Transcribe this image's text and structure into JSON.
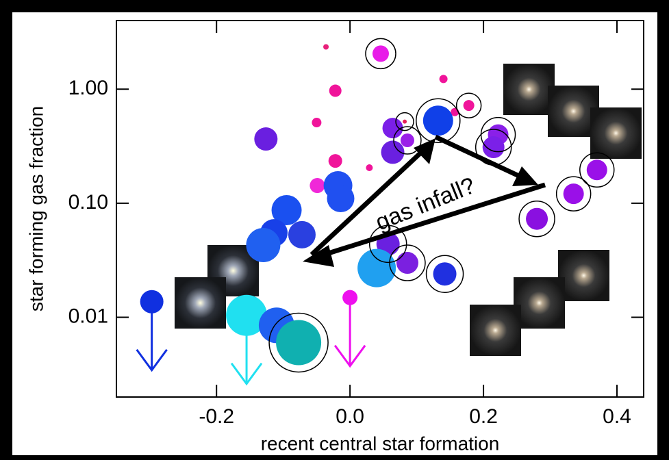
{
  "chart_data": {
    "type": "scatter",
    "xlabel": "recent central star formation",
    "ylabel": "star forming gas fraction",
    "annotation": "gas infall?",
    "log_y": true,
    "xlim": [
      -0.35,
      0.44
    ],
    "ylim": [
      0.002,
      4
    ],
    "xticks": [
      -0.2,
      {
        "value": 0,
        "label": "0.0"
      },
      0.2,
      0.4
    ],
    "yticks": [
      {
        "value": 1,
        "label": "1.00"
      },
      {
        "value": 0.1,
        "label": "0.10"
      },
      0.01
    ],
    "x": [
      0.046,
      -0.036,
      -0.022,
      0.14,
      0.178,
      0.157,
      -0.05,
      0.082,
      -0.022,
      0.029,
      -0.049,
      -0.126,
      0.064,
      0.064,
      0.086,
      0.132,
      0.222,
      0.215,
      0.37,
      0.335,
      0.28,
      -0.018,
      -0.014,
      -0.095,
      -0.114,
      -0.072,
      -0.13,
      0.057,
      0.086,
      0.04,
      0.142,
      -0.297,
      -0.155,
      -0.11,
      -0.077,
      0
    ],
    "values": [
      2.05,
      2.35,
      0.97,
      1.23,
      0.72,
      0.63,
      0.51,
      0.52,
      0.235,
      0.205,
      0.143,
      0.366,
      0.456,
      0.28,
      0.356,
      0.53,
      0.4,
      0.31,
      0.196,
      0.121,
      0.073,
      0.143,
      0.11,
      0.087,
      0.055,
      0.053,
      0.043,
      0.044,
      0.03,
      0.027,
      0.024,
      0.0137,
      0.0104,
      0.0085,
      0.006,
      0.0149
    ],
    "sizes": [
      12,
      4,
      9,
      6,
      8,
      6,
      7,
      3,
      10,
      5,
      11,
      17,
      15,
      17,
      10,
      22,
      15,
      16,
      15,
      15,
      16,
      21,
      20,
      22,
      20,
      20,
      25,
      17,
      16,
      28,
      17,
      17,
      30,
      26,
      33,
      11
    ],
    "colors": [
      "#e81ce8",
      "#e8207a",
      "#f0149a",
      "#f0149a",
      "#f0149a",
      "#f0149a",
      "#f0149a",
      "#e8205a",
      "#f0149a",
      "#f0149a",
      "#f028d8",
      "#6a1fe0",
      "#7b1fe8",
      "#6a20e0",
      "#9a1fe8",
      "#1040e8",
      "#8a20e8",
      "#7b20e8",
      "#9a10e8",
      "#9a10e8",
      "#8a10e0",
      "#2050f0",
      "#2050f0",
      "#1a50f0",
      "#1840e8",
      "#2a40e0",
      "#2060f0",
      "#6a20e0",
      "#7b20e0",
      "#20a0f0",
      "#2030e0",
      "#1030e0",
      "#20e0f0",
      "#2060f0",
      "#10b0b0",
      "#ee10ee"
    ],
    "ringed": [
      true,
      false,
      false,
      false,
      true,
      false,
      false,
      true,
      false,
      false,
      false,
      false,
      false,
      false,
      true,
      true,
      true,
      true,
      true,
      true,
      true,
      false,
      false,
      false,
      false,
      false,
      false,
      true,
      true,
      false,
      true,
      false,
      false,
      false,
      true,
      false
    ],
    "upper_limits": [
      false,
      false,
      false,
      false,
      false,
      false,
      false,
      false,
      false,
      false,
      false,
      false,
      false,
      false,
      false,
      false,
      false,
      false,
      false,
      false,
      false,
      false,
      false,
      false,
      false,
      false,
      false,
      false,
      false,
      false,
      false,
      true,
      true,
      false,
      false,
      true
    ]
  }
}
